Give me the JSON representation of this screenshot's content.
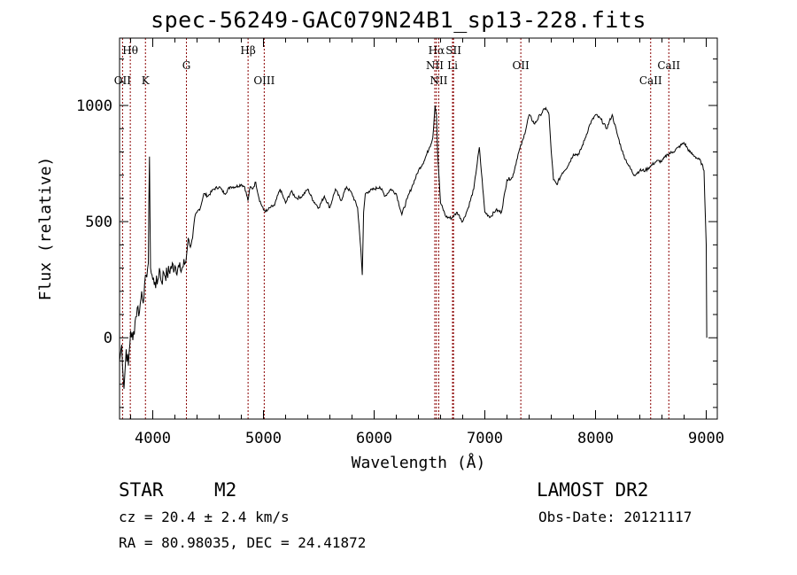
{
  "chart_data": {
    "type": "line",
    "title": "spec-56249-GAC079N24B1_sp13-228.fits",
    "xlabel": "Wavelength (Å)",
    "ylabel": "Flux (relative)",
    "xlim": [
      3700,
      9100
    ],
    "ylim": [
      -350,
      1290
    ],
    "xticks": [
      4000,
      5000,
      6000,
      7000,
      8000,
      9000
    ],
    "yticks": [
      0,
      500,
      1000
    ],
    "grid": false,
    "series": [
      {
        "x": [
          3700,
          3720,
          3740,
          3760,
          3780,
          3800,
          3820,
          3840,
          3860,
          3880,
          3900,
          3920,
          3940,
          3960,
          3970,
          3980,
          4000,
          4020,
          4040,
          4060,
          4080,
          4100,
          4130,
          4160,
          4200,
          4250,
          4300,
          4320,
          4340,
          4360,
          4380,
          4400,
          4430,
          4460,
          4500,
          4550,
          4600,
          4650,
          4700,
          4750,
          4800,
          4830,
          4860,
          4880,
          4900,
          4930,
          4960,
          5000,
          5030,
          5060,
          5100,
          5150,
          5200,
          5250,
          5300,
          5350,
          5400,
          5450,
          5500,
          5550,
          5600,
          5650,
          5700,
          5750,
          5800,
          5850,
          5880,
          5893,
          5905,
          5920,
          5950,
          6000,
          6050,
          6100,
          6150,
          6200,
          6250,
          6300,
          6350,
          6400,
          6450,
          6500,
          6530,
          6550,
          6563,
          6575,
          6600,
          6650,
          6700,
          6750,
          6800,
          6850,
          6900,
          6950,
          7000,
          7050,
          7100,
          7150,
          7200,
          7250,
          7300,
          7350,
          7400,
          7450,
          7500,
          7550,
          7580,
          7600,
          7620,
          7650,
          7700,
          7750,
          7800,
          7850,
          7900,
          7950,
          8000,
          8050,
          8100,
          8150,
          8200,
          8250,
          8300,
          8350,
          8400,
          8450,
          8500,
          8550,
          8600,
          8650,
          8700,
          8750,
          8800,
          8850,
          8900,
          8950,
          8980,
          9000,
          9005
        ],
        "y": [
          -100,
          -30,
          -220,
          -50,
          -120,
          30,
          -10,
          70,
          130,
          110,
          200,
          170,
          270,
          320,
          780,
          300,
          250,
          240,
          230,
          300,
          240,
          280,
          270,
          300,
          310,
          290,
          330,
          430,
          390,
          430,
          520,
          540,
          560,
          620,
          610,
          640,
          650,
          620,
          650,
          650,
          660,
          650,
          590,
          650,
          640,
          670,
          600,
          550,
          545,
          560,
          570,
          640,
          580,
          630,
          600,
          610,
          640,
          590,
          560,
          610,
          560,
          640,
          590,
          650,
          620,
          560,
          380,
          270,
          540,
          620,
          630,
          640,
          650,
          610,
          640,
          620,
          530,
          600,
          660,
          720,
          760,
          820,
          860,
          1000,
          960,
          780,
          580,
          520,
          515,
          540,
          500,
          560,
          640,
          820,
          540,
          520,
          550,
          540,
          680,
          690,
          790,
          860,
          960,
          920,
          960,
          990,
          960,
          800,
          680,
          660,
          710,
          740,
          790,
          790,
          850,
          920,
          960,
          940,
          900,
          960,
          870,
          790,
          740,
          700,
          720,
          720,
          740,
          760,
          760,
          790,
          800,
          820,
          840,
          800,
          780,
          760,
          720,
          400,
          0
        ]
      }
    ],
    "lines": [
      {
        "name": "Hθ",
        "wl": 3797,
        "row": 1
      },
      {
        "name": "OII",
        "wl": 3727,
        "row": 3
      },
      {
        "name": "K",
        "wl": 3934,
        "row": 3
      },
      {
        "name": "G",
        "wl": 4304,
        "row": 2
      },
      {
        "name": "Hβ",
        "wl": 4861,
        "row": 1
      },
      {
        "name": "OIII",
        "wl": 5007,
        "row": 3
      },
      {
        "name": "Hα",
        "wl": 6563,
        "row": 1
      },
      {
        "name": "SII",
        "wl": 6717,
        "row": 1
      },
      {
        "name": "NII",
        "wl": 6548,
        "row": 2
      },
      {
        "name": "Li",
        "wl": 6708,
        "row": 2
      },
      {
        "name": "NII",
        "wl": 6584,
        "row": 3
      },
      {
        "name": "OII",
        "wl": 7325,
        "row": 2
      },
      {
        "name": "CaII",
        "wl": 8662,
        "row": 2
      },
      {
        "name": "CaII",
        "wl": 8498,
        "row": 3
      }
    ]
  },
  "info": {
    "object_class": "STAR",
    "subclass": "M2",
    "survey": "LAMOST DR2",
    "cz": "cz = 20.4 ± 2.4 km/s",
    "obs_date": "Obs-Date: 20121117",
    "radec": "RA =  80.98035, DEC =  24.41872"
  }
}
